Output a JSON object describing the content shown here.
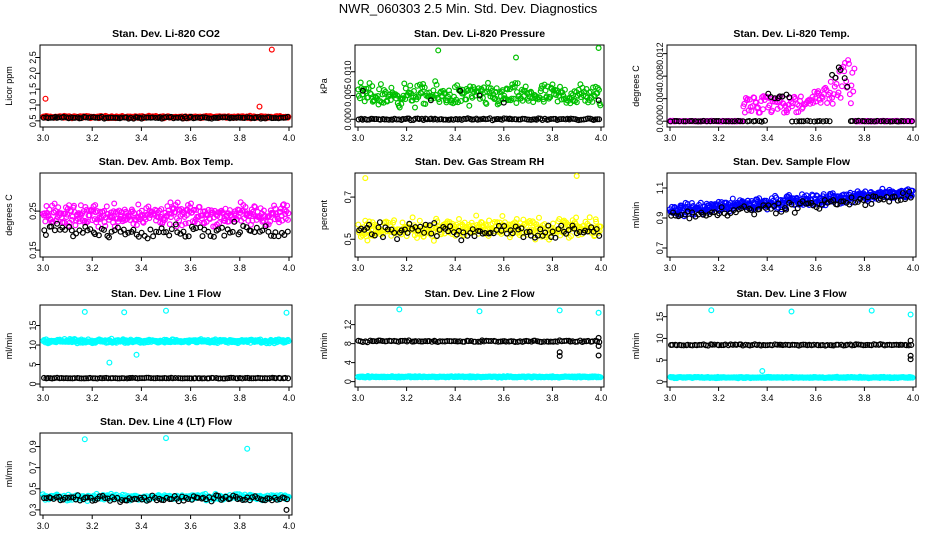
{
  "title": "NWR_060303  2.5 Min. Std. Dev. Diagnostics",
  "chart_data": [
    {
      "type": "scatter",
      "title": "Stan. Dev. Li-820 CO2",
      "ylabel": "Licor ppm",
      "xlim": [
        3.0,
        4.0
      ],
      "ylim": [
        0.4,
        2.8
      ],
      "xticks": [
        "3.0",
        "3.2",
        "3.4",
        "3.6",
        "3.8",
        "4.0"
      ],
      "yticks": [
        {
          "v": 0.5,
          "label": "0.5"
        },
        {
          "v": 1.0,
          "label": "1.0"
        },
        {
          "v": 1.5,
          "label": "1.5"
        },
        {
          "v": 2.0,
          "label": "2.0"
        },
        {
          "v": 2.5,
          "label": "2.5"
        }
      ],
      "series": [
        {
          "name": "colored",
          "color": "#ff0000",
          "base": 0.62,
          "spread": 0.05,
          "n": 340,
          "outliers": [
            [
              3.01,
              1.2
            ],
            [
              3.93,
              2.75
            ],
            [
              3.88,
              0.95
            ]
          ]
        },
        {
          "name": "black",
          "color": "#000000",
          "base": 0.6,
          "spread": 0.04,
          "n": 110,
          "outliers": []
        }
      ]
    },
    {
      "type": "scatter",
      "title": "Stan. Dev. Li-820 Pressure",
      "ylabel": "kPa",
      "xlim": [
        3.0,
        4.0
      ],
      "ylim": [
        -0.001,
        0.015
      ],
      "xticks": [
        "3.0",
        "3.2",
        "3.4",
        "3.6",
        "3.8",
        "4.0"
      ],
      "yticks": [
        {
          "v": 0.0,
          "label": "0.000"
        },
        {
          "v": 0.005,
          "label": "0.005"
        },
        {
          "v": 0.01,
          "label": "0.010"
        }
      ],
      "series": [
        {
          "name": "colored",
          "color": "#00c000",
          "base": 0.005,
          "spread": 0.0035,
          "n": 300,
          "outliers": [
            [
              3.33,
              0.0145
            ],
            [
              3.65,
              0.013
            ],
            [
              3.99,
              0.015
            ]
          ]
        },
        {
          "name": "black",
          "color": "#000000",
          "base": 0.0,
          "spread": 0.0003,
          "n": 120,
          "outliers": [
            [
              3.3,
              0.004
            ],
            [
              3.5,
              0.005
            ],
            [
              3.6,
              0.0035
            ],
            [
              3.99,
              0.004
            ],
            [
              3.02,
              0.006
            ],
            [
              3.42,
              0.006
            ]
          ]
        }
      ]
    },
    {
      "type": "scatter",
      "title": "Stan. Dev. Li-820 Temp.",
      "ylabel": "degrees C",
      "xlim": [
        3.0,
        4.0
      ],
      "ylim": [
        -0.0005,
        0.013
      ],
      "xticks": [
        "3.0",
        "3.2",
        "3.4",
        "3.6",
        "3.8",
        "4.0"
      ],
      "yticks": [
        {
          "v": 0.0,
          "label": "0.000"
        },
        {
          "v": 0.004,
          "label": "0.004"
        },
        {
          "v": 0.008,
          "label": "0.008"
        },
        {
          "v": 0.012,
          "label": "0.012"
        }
      ],
      "series": [
        {
          "name": "colored",
          "color": "#ff00ff",
          "base": 0.0,
          "spread": 0.0001,
          "n": 260,
          "outliers": []
        },
        {
          "name": "black",
          "color": "#000000",
          "base": 0.0,
          "spread": 0.0001,
          "n": 80,
          "outliers": []
        }
      ]
    },
    {
      "type": "scatter",
      "title": "Stan. Dev. Amb. Box Temp.",
      "ylabel": "degrees C",
      "xlim": [
        3.0,
        4.0
      ],
      "ylim": [
        0.14,
        0.34
      ],
      "xticks": [
        "3.0",
        "3.2",
        "3.4",
        "3.6",
        "3.8",
        "4.0"
      ],
      "yticks": [
        {
          "v": 0.15,
          "label": "0.15"
        },
        {
          "v": 0.25,
          "label": "0.25"
        }
      ],
      "series": [
        {
          "name": "colored",
          "color": "#ff00ff",
          "base": 0.24,
          "spread": 0.04,
          "n": 360,
          "outliers": []
        },
        {
          "name": "black",
          "color": "#000000",
          "base": 0.2,
          "spread": 0.025,
          "n": 90,
          "outliers": []
        }
      ]
    },
    {
      "type": "scatter",
      "title": "Stan. Dev. Gas Stream RH",
      "ylabel": "percent",
      "xlim": [
        3.0,
        4.0
      ],
      "ylim": [
        0.43,
        0.8
      ],
      "xticks": [
        "3.0",
        "3.2",
        "3.4",
        "3.6",
        "3.8",
        "4.0"
      ],
      "yticks": [
        {
          "v": 0.5,
          "label": "0.5"
        },
        {
          "v": 0.7,
          "label": "0.7"
        }
      ],
      "series": [
        {
          "name": "colored",
          "color": "#ffff00",
          "base": 0.55,
          "spread": 0.07,
          "n": 340,
          "outliers": [
            [
              3.03,
              0.79
            ],
            [
              3.9,
              0.8
            ]
          ]
        },
        {
          "name": "black",
          "color": "#000000",
          "base": 0.54,
          "spread": 0.05,
          "n": 90,
          "outliers": []
        }
      ]
    },
    {
      "type": "scatter",
      "title": "Stan. Dev. Sample Flow",
      "ylabel": "ml/min",
      "xlim": [
        3.0,
        4.0
      ],
      "ylim": [
        0.66,
        1.18
      ],
      "xticks": [
        "3.0",
        "3.2",
        "3.4",
        "3.6",
        "3.8",
        "4.0"
      ],
      "yticks": [
        {
          "v": 0.7,
          "label": "0.7"
        },
        {
          "v": 0.9,
          "label": "0.9"
        },
        {
          "v": 1.1,
          "label": "1.1"
        }
      ],
      "series": [
        {
          "name": "colored",
          "color": "#0000ff",
          "base": 0.95,
          "spread": 0.06,
          "n": 380,
          "outliers": []
        },
        {
          "name": "black",
          "color": "#000000",
          "base": 0.92,
          "spread": 0.05,
          "n": 90,
          "outliers": []
        }
      ]
    },
    {
      "type": "scatter",
      "title": "Stan. Dev. Line 1 Flow",
      "ylabel": "ml/min",
      "xlim": [
        3.0,
        4.0
      ],
      "ylim": [
        0,
        19.5
      ],
      "xticks": [
        "3.0",
        "3.2",
        "3.4",
        "3.6",
        "3.8",
        "4.0"
      ],
      "yticks": [
        {
          "v": 0,
          "label": "0"
        },
        {
          "v": 5,
          "label": "5"
        },
        {
          "v": 10,
          "label": "10"
        },
        {
          "v": 15,
          "label": "15"
        }
      ],
      "series": [
        {
          "name": "colored",
          "color": "#00ffff",
          "base": 11.0,
          "spread": 0.7,
          "n": 360,
          "outliers": [
            [
              3.17,
              18.5
            ],
            [
              3.33,
              18.4
            ],
            [
              3.5,
              18.8
            ],
            [
              3.99,
              18.3
            ],
            [
              3.27,
              5.5
            ],
            [
              3.38,
              7.5
            ]
          ]
        },
        {
          "name": "black",
          "color": "#000000",
          "base": 1.5,
          "spread": 0.15,
          "n": 110,
          "outliers": []
        }
      ]
    },
    {
      "type": "scatter",
      "title": "Stan. Dev. Line 2 Flow",
      "ylabel": "ml/min",
      "xlim": [
        3.0,
        4.0
      ],
      "ylim": [
        -0.5,
        15.5
      ],
      "xticks": [
        "3.0",
        "3.2",
        "3.4",
        "3.6",
        "3.8",
        "4.0"
      ],
      "yticks": [
        {
          "v": 0,
          "label": "0"
        },
        {
          "v": 4,
          "label": "4"
        },
        {
          "v": 8,
          "label": "8"
        },
        {
          "v": 12,
          "label": "12"
        }
      ],
      "series": [
        {
          "name": "colored",
          "color": "#00ffff",
          "base": 1.0,
          "spread": 0.2,
          "n": 300,
          "outliers": [
            [
              3.17,
              15.2
            ],
            [
              3.5,
              14.8
            ],
            [
              3.83,
              15.0
            ],
            [
              3.99,
              14.5
            ]
          ]
        },
        {
          "name": "black",
          "color": "#000000",
          "base": 8.5,
          "spread": 0.25,
          "n": 110,
          "outliers": [
            [
              3.83,
              6.2
            ],
            [
              3.83,
              5.4
            ],
            [
              3.99,
              5.5
            ],
            [
              3.99,
              7.5
            ],
            [
              3.99,
              9.2
            ]
          ]
        }
      ]
    },
    {
      "type": "scatter",
      "title": "Stan. Dev. Line 3 Flow",
      "ylabel": "ml/min",
      "xlim": [
        3.0,
        4.0
      ],
      "ylim": [
        -0.5,
        17
      ],
      "xticks": [
        "3.0",
        "3.2",
        "3.4",
        "3.6",
        "3.8",
        "4.0"
      ],
      "yticks": [
        {
          "v": 0,
          "label": "0"
        },
        {
          "v": 5,
          "label": "5"
        },
        {
          "v": 10,
          "label": "10"
        },
        {
          "v": 15,
          "label": "15"
        }
      ],
      "series": [
        {
          "name": "colored",
          "color": "#00ffff",
          "base": 1.0,
          "spread": 0.2,
          "n": 300,
          "outliers": [
            [
              3.17,
              16.5
            ],
            [
              3.5,
              16.2
            ],
            [
              3.83,
              16.4
            ],
            [
              3.99,
              15.5
            ],
            [
              3.38,
              2.5
            ]
          ]
        },
        {
          "name": "black",
          "color": "#000000",
          "base": 8.5,
          "spread": 0.25,
          "n": 110,
          "outliers": [
            [
              3.99,
              6.0
            ],
            [
              3.99,
              5.2
            ],
            [
              3.99,
              9.5
            ]
          ]
        }
      ]
    },
    {
      "type": "scatter",
      "title": "Stan. Dev. Line 4 (LT) Flow",
      "ylabel": "ml/min",
      "xlim": [
        3.0,
        4.0
      ],
      "ylim": [
        0.28,
        1.0
      ],
      "xticks": [
        "3.0",
        "3.2",
        "3.4",
        "3.6",
        "3.8",
        "4.0"
      ],
      "yticks": [
        {
          "v": 0.3,
          "label": "0.3"
        },
        {
          "v": 0.5,
          "label": "0.5"
        },
        {
          "v": 0.7,
          "label": "0.7"
        },
        {
          "v": 0.9,
          "label": "0.9"
        }
      ],
      "series": [
        {
          "name": "colored",
          "color": "#00ffff",
          "base": 0.42,
          "spread": 0.04,
          "n": 340,
          "outliers": [
            [
              3.17,
              0.97
            ],
            [
              3.5,
              0.98
            ],
            [
              3.83,
              0.88
            ]
          ]
        },
        {
          "name": "black",
          "color": "#000000",
          "base": 0.41,
          "spread": 0.04,
          "n": 100,
          "outliers": [
            [
              3.99,
              0.3
            ]
          ]
        }
      ]
    }
  ]
}
